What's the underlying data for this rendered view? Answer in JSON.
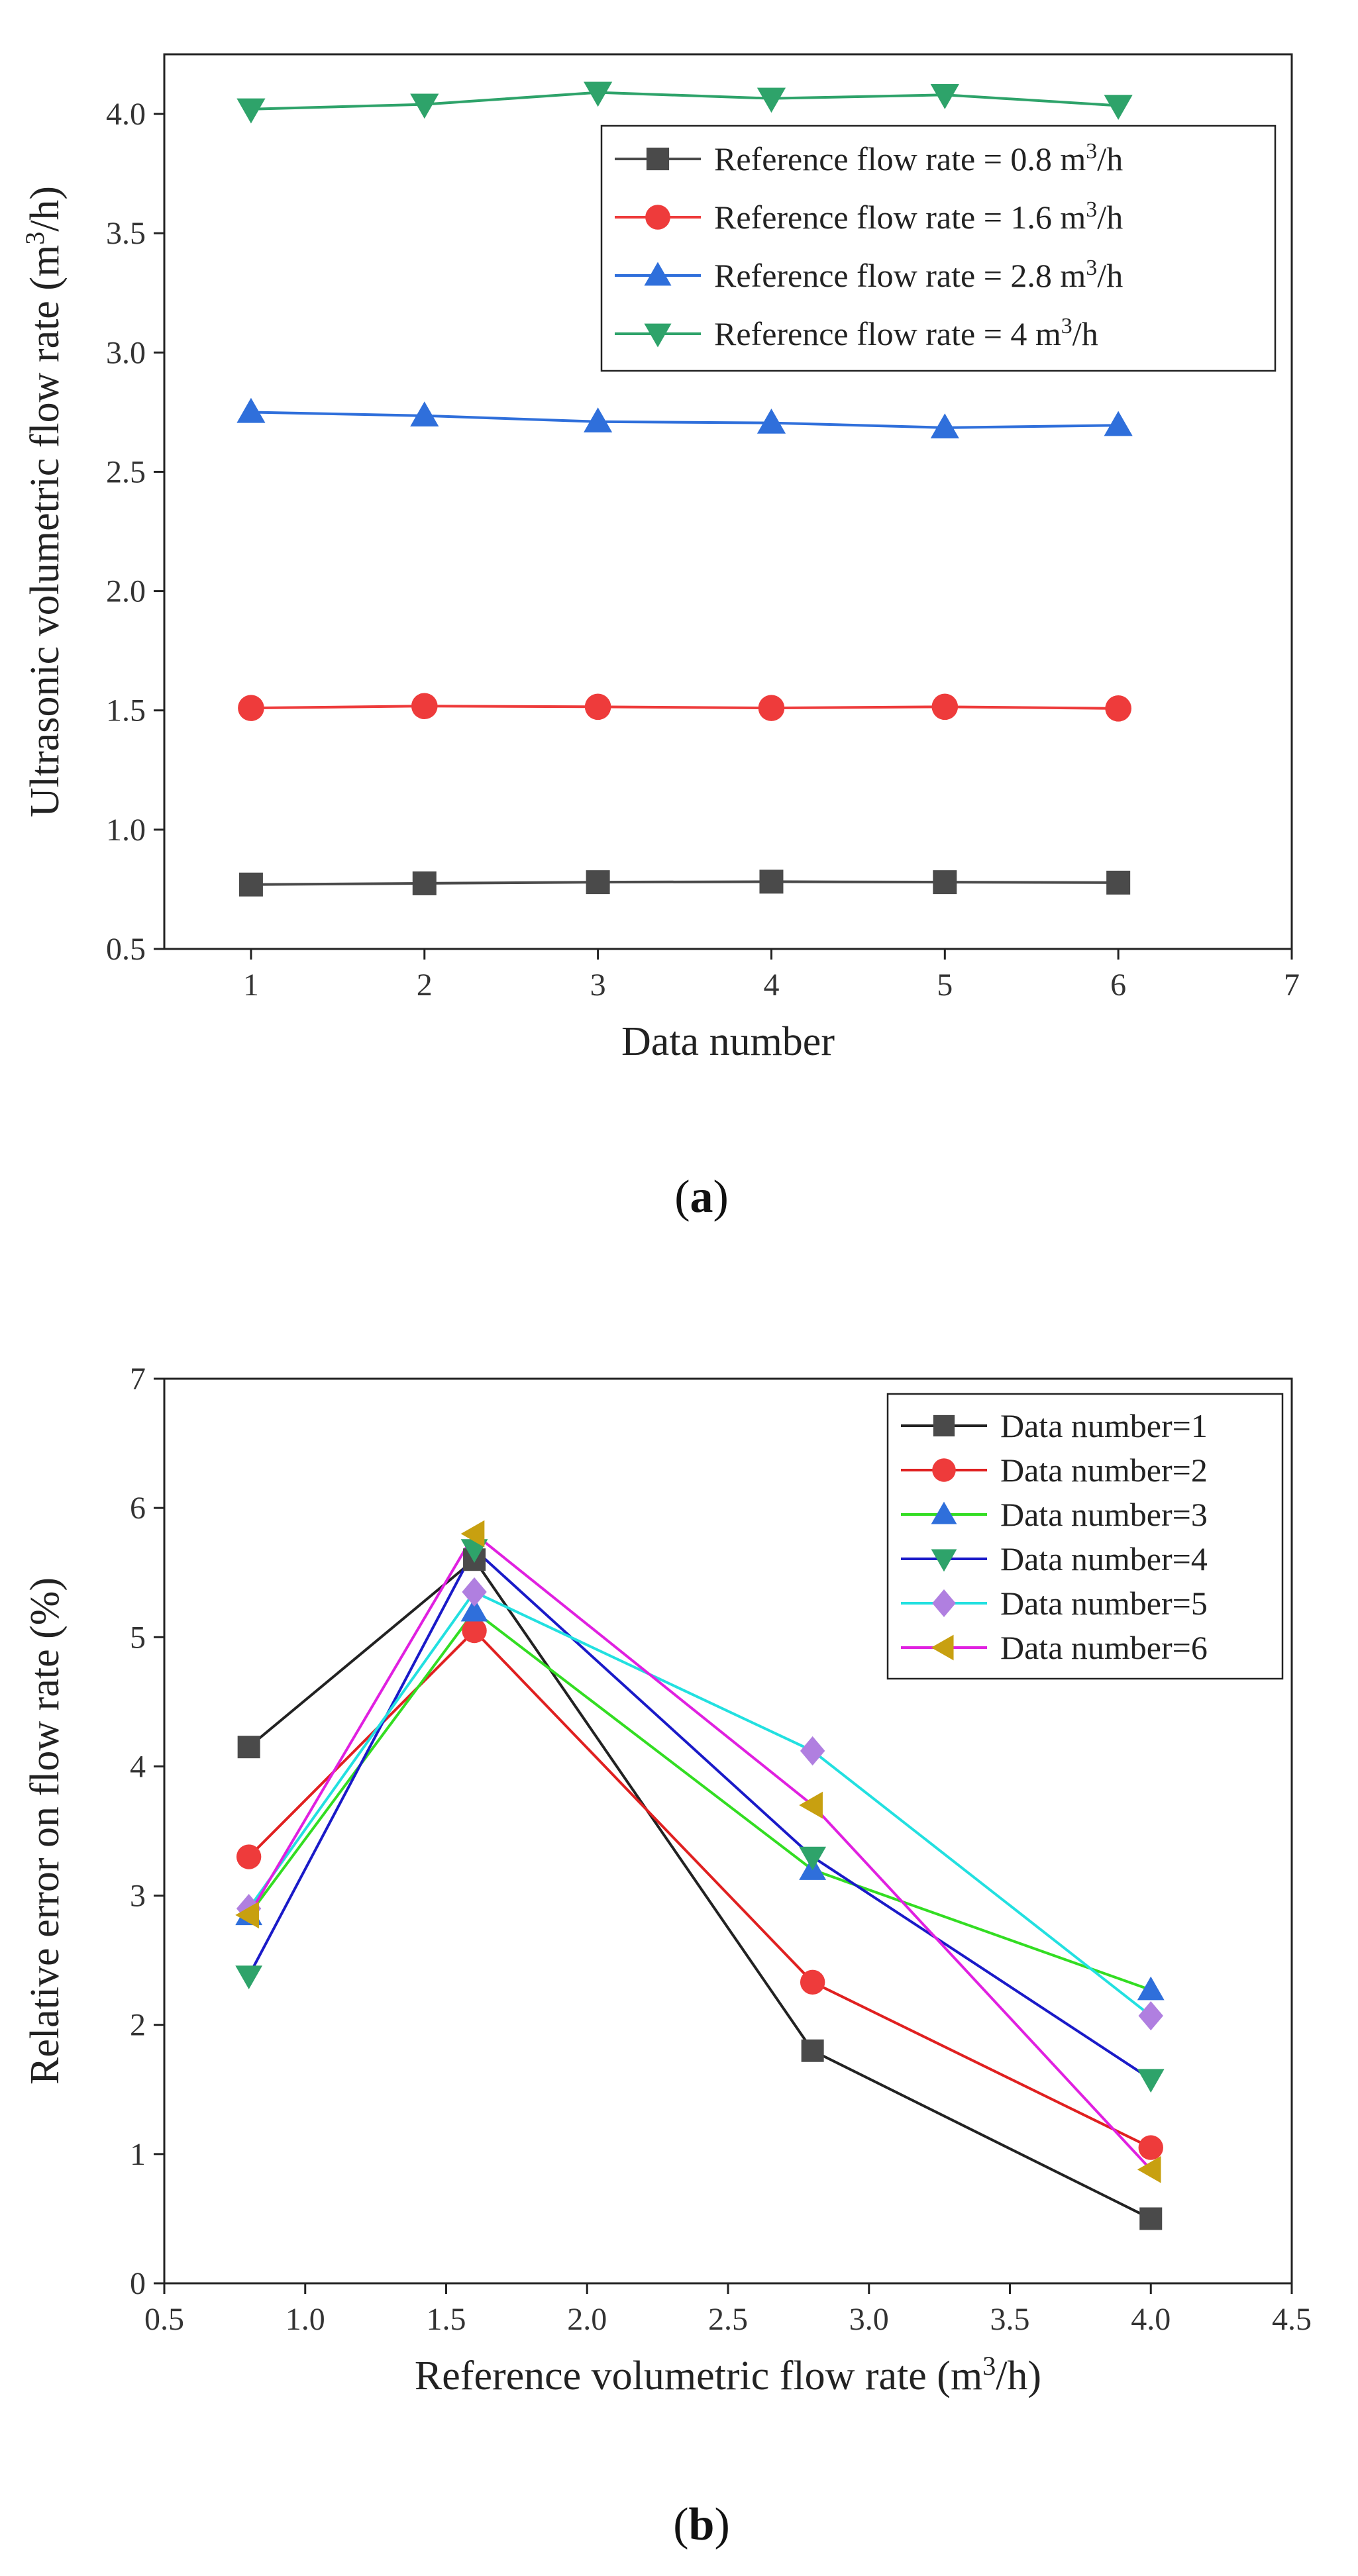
{
  "chart_data": [
    {
      "type": "line",
      "panel_label": "a",
      "xlabel": "Data number",
      "ylabel": "Ultrasonic volumetric flow rate (m3/h)",
      "xlim": [
        0.5,
        7
      ],
      "ylim": [
        0.5,
        4.25
      ],
      "xticks": [
        1,
        2,
        3,
        4,
        5,
        6,
        7
      ],
      "yticks": [
        0.5,
        1.0,
        1.5,
        2.0,
        2.5,
        3.0,
        3.5,
        4.0
      ],
      "x": [
        1,
        2,
        3,
        4,
        5,
        6
      ],
      "legend_position": "top-right",
      "series": [
        {
          "name": "Reference flow rate = 0.8 m3/h",
          "color": "#4a4a4a",
          "marker": "square",
          "values": [
            0.77,
            0.775,
            0.78,
            0.782,
            0.78,
            0.778
          ]
        },
        {
          "name": "Reference flow rate = 1.6 m3/h",
          "color": "#ee3b3b",
          "marker": "circle",
          "values": [
            1.51,
            1.518,
            1.515,
            1.51,
            1.515,
            1.508
          ]
        },
        {
          "name": "Reference flow rate = 2.8 m3/h",
          "color": "#2f6fdb",
          "marker": "triangle-up",
          "values": [
            2.75,
            2.735,
            2.71,
            2.705,
            2.685,
            2.695
          ]
        },
        {
          "name": "Reference flow rate = 4 m3/h",
          "color": "#2ea36a",
          "marker": "triangle-down",
          "values": [
            4.02,
            4.04,
            4.09,
            4.065,
            4.08,
            4.035
          ]
        }
      ]
    },
    {
      "type": "line",
      "panel_label": "b",
      "xlabel": "Reference volumetric flow rate (m3/h)",
      "ylabel": "Relative error on flow rate (%)",
      "xlim": [
        0.5,
        4.5
      ],
      "ylim": [
        0,
        7
      ],
      "xticks": [
        0.5,
        1.0,
        1.5,
        2.0,
        2.5,
        3.0,
        3.5,
        4.0,
        4.5
      ],
      "yticks": [
        0,
        1,
        2,
        3,
        4,
        5,
        6,
        7
      ],
      "x": [
        0.8,
        1.6,
        2.8,
        4.0
      ],
      "legend_position": "top-right",
      "series": [
        {
          "name": "Data number=1",
          "color": "#222222",
          "marker": "square",
          "marker_color": "#4a4a4a",
          "values": [
            4.15,
            5.6,
            1.8,
            0.5
          ]
        },
        {
          "name": "Data number=2",
          "color": "#e02020",
          "marker": "circle",
          "marker_color": "#ee3b3b",
          "values": [
            3.3,
            5.05,
            2.33,
            1.05
          ]
        },
        {
          "name": "Data number=3",
          "color": "#33dd22",
          "marker": "triangle-up",
          "marker_color": "#2f6fdb",
          "values": [
            2.85,
            5.2,
            3.2,
            2.27
          ]
        },
        {
          "name": "Data number=4",
          "color": "#1a1ac8",
          "marker": "triangle-down",
          "marker_color": "#2ea36a",
          "values": [
            2.38,
            5.68,
            3.3,
            1.58
          ]
        },
        {
          "name": "Data number=5",
          "color": "#22e0e0",
          "marker": "diamond",
          "marker_color": "#b07fe0",
          "values": [
            2.9,
            5.35,
            4.12,
            2.07
          ]
        },
        {
          "name": "Data number=6",
          "color": "#e020e0",
          "marker": "triangle-left",
          "marker_color": "#c8a010",
          "values": [
            2.85,
            5.8,
            3.7,
            0.88
          ]
        }
      ]
    }
  ]
}
